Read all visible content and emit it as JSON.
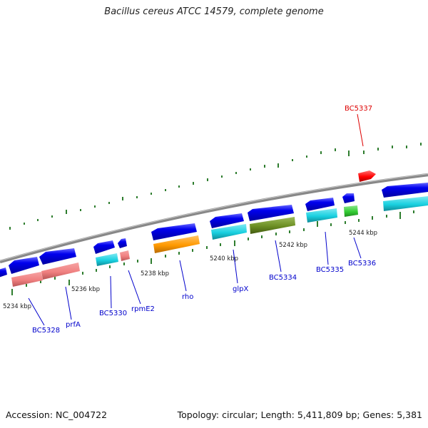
{
  "title": "Bacillus cereus ATCC 14579, complete genome",
  "footer": {
    "accession": "Accession: NC_004722",
    "stats": "Topology: circular; Length: 5,411,809 bp; Genes: 5,381"
  },
  "kbp_ticks": [
    "5234 kbp",
    "5236 kbp",
    "5238 kbp",
    "5240 kbp",
    "5242 kbp",
    "5244 kbp"
  ],
  "gene_labels": [
    "BC5328",
    "prfA",
    "BC5330",
    "rpmE2",
    "rho",
    "glpX",
    "BC5334",
    "BC5335",
    "BC5336",
    "BC5337"
  ],
  "colors": {
    "backbone": "#888888",
    "tick": "#2e7d2e",
    "cds": "#0000e6",
    "label_blue": "#0000cc",
    "label_red": "#dd0000",
    "pink": "#f08080",
    "cyan": "#19d0e0",
    "orange": "#ff9900",
    "olive": "#6b8e23",
    "green": "#33cc33",
    "red": "#ff0000"
  }
}
